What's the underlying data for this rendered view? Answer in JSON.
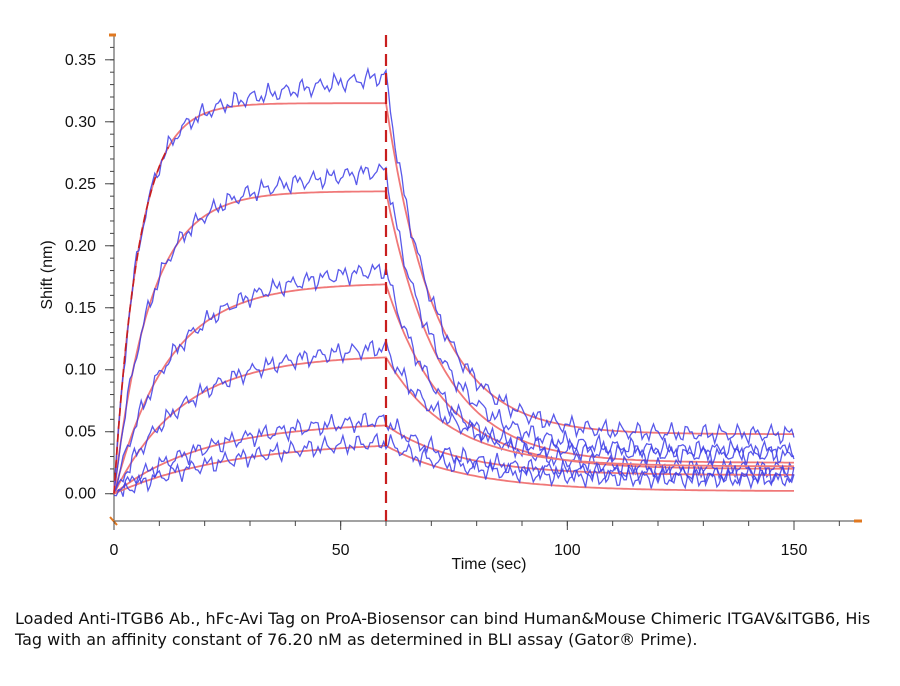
{
  "chart_data": {
    "type": "line",
    "title": "",
    "xlabel": "Time (sec)",
    "ylabel": "Shift (nm)",
    "xlim": [
      0,
      165
    ],
    "ylim": [
      -0.022,
      0.37
    ],
    "x_ticks": [
      0,
      50,
      100,
      150
    ],
    "x_tick_labels": [
      "0",
      "50",
      "100",
      "150"
    ],
    "y_ticks": [
      0.0,
      0.05,
      0.1,
      0.15,
      0.2,
      0.25,
      0.3,
      0.35
    ],
    "y_tick_labels": [
      "0.00",
      "0.05",
      "0.10",
      "0.15",
      "0.20",
      "0.25",
      "0.30",
      "0.35"
    ],
    "grid": false,
    "legend": "none",
    "association_end_marker": 60,
    "colors": {
      "measured": "#3c3ce6",
      "fit": "#f07878",
      "marker": "#c81e1e",
      "axis_accent": "#e07820"
    },
    "kinetic_curves": [
      {
        "plateau": 0.315,
        "tau_assoc": 5.5,
        "dissociation_end": 0.048,
        "tau_dissoc": 11
      },
      {
        "plateau": 0.244,
        "tau_assoc": 8,
        "dissociation_end": 0.025,
        "tau_dissoc": 12
      },
      {
        "plateau": 0.17,
        "tau_assoc": 12,
        "dissociation_end": 0.02,
        "tau_dissoc": 13
      },
      {
        "plateau": 0.112,
        "tau_assoc": 15,
        "dissociation_end": 0.022,
        "tau_dissoc": 14
      },
      {
        "plateau": 0.058,
        "tau_assoc": 20,
        "dissociation_end": 0.015,
        "tau_dissoc": 16
      },
      {
        "plateau": 0.043,
        "tau_assoc": 26,
        "dissociation_end": 0.002,
        "tau_dissoc": 18
      }
    ]
  },
  "caption": "Loaded Anti-ITGB6 Ab., hFc-Avi Tag on ProA-Biosensor can bind Human&Mouse Chimeric ITGAV&ITGB6, His Tag with an affinity constant of 76.20 nM as determined in BLI assay (Gator® Prime)."
}
